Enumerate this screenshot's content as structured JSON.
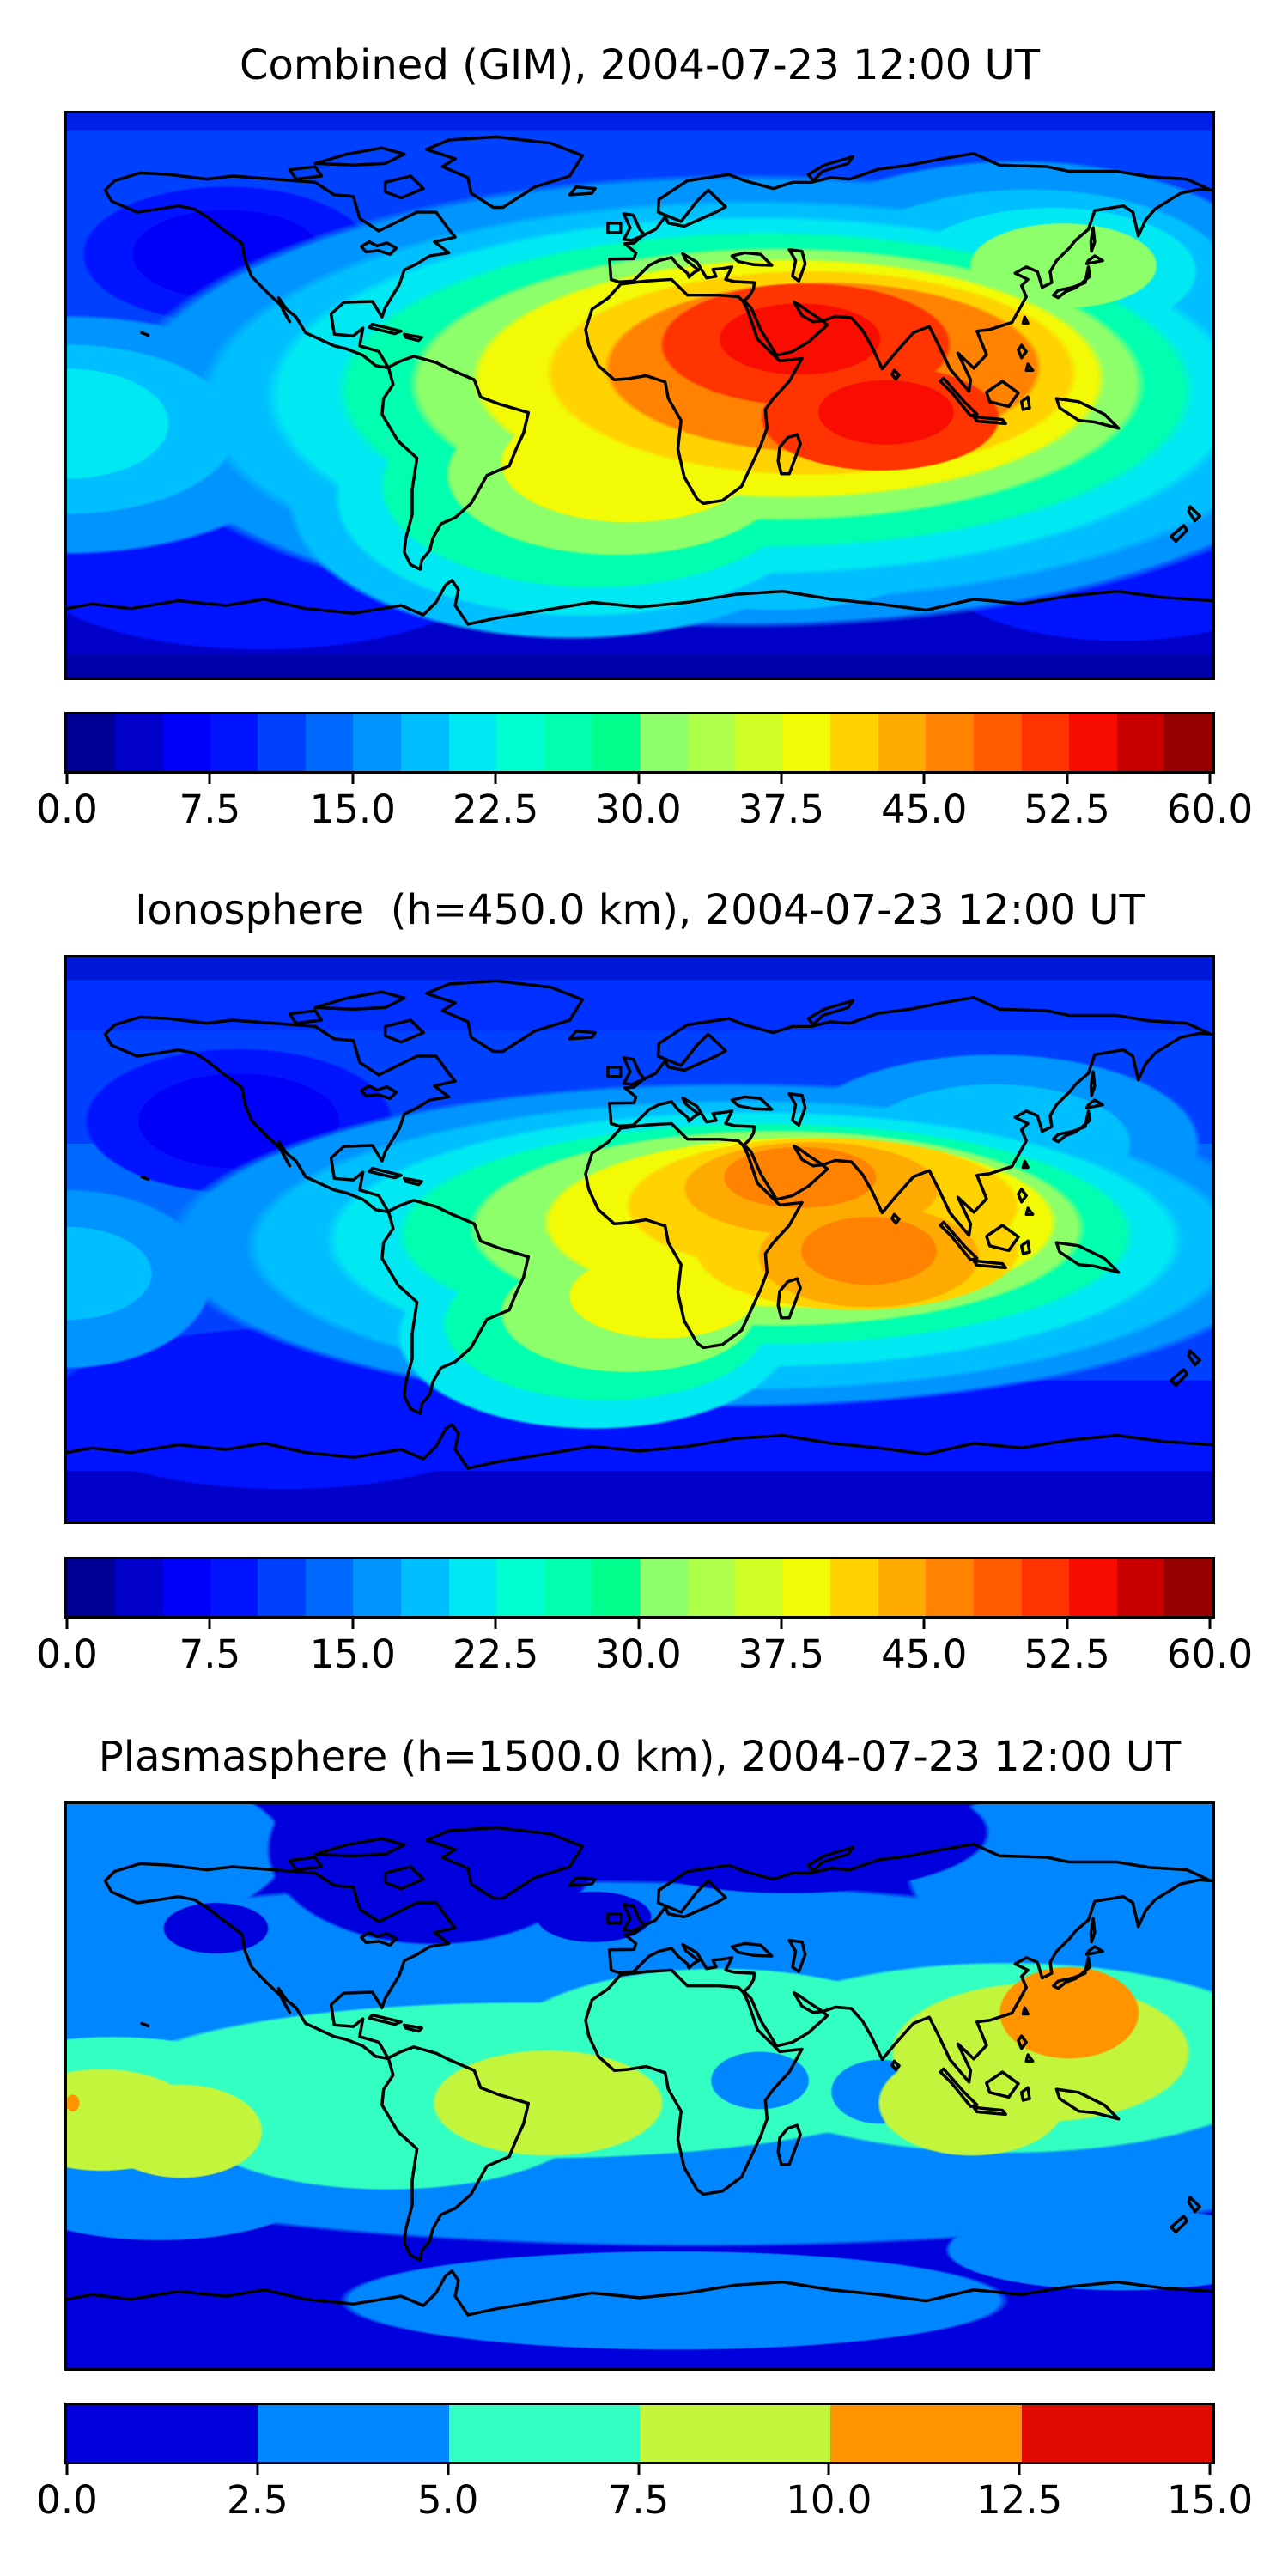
{
  "figure": {
    "kind": "stacked filled-contour world maps with horizontal colorbars",
    "background_color": "#ffffff",
    "text_color": "#000000",
    "colormap_name": "jet"
  },
  "panels": [
    {
      "id": "combined",
      "title": "Combined (GIM), 2004-07-23 12:00 UT",
      "colorbar": {
        "min": 0.0,
        "max": 60.0,
        "step": 2.5,
        "n_segments": 24,
        "tick_labels": [
          "0.0",
          "7.5",
          "15.0",
          "22.5",
          "30.0",
          "37.5",
          "45.0",
          "52.5",
          "60.0"
        ],
        "segment_colors": [
          "#000096",
          "#0000c8",
          "#0000f8",
          "#0014ff",
          "#0040ff",
          "#006aff",
          "#0094ff",
          "#00bfff",
          "#00e9f2",
          "#00ffd0",
          "#00ffae",
          "#00ff8c",
          "#8cff6a",
          "#aeff48",
          "#d0ff26",
          "#f2fa05",
          "#ffd200",
          "#ffaa00",
          "#ff8200",
          "#ff5c00",
          "#ff3400",
          "#f70d00",
          "#c80000",
          "#960000"
        ]
      }
    },
    {
      "id": "ionosphere",
      "title": "Ionosphere  (h=450.0 km), 2004-07-23 12:00 UT",
      "colorbar": {
        "min": 0.0,
        "max": 60.0,
        "step": 2.5,
        "n_segments": 24,
        "tick_labels": [
          "0.0",
          "7.5",
          "15.0",
          "22.5",
          "30.0",
          "37.5",
          "45.0",
          "52.5",
          "60.0"
        ],
        "segment_colors": [
          "#000096",
          "#0000c8",
          "#0000f8",
          "#0014ff",
          "#0040ff",
          "#006aff",
          "#0094ff",
          "#00bfff",
          "#00e9f2",
          "#00ffd0",
          "#00ffae",
          "#00ff8c",
          "#8cff6a",
          "#aeff48",
          "#d0ff26",
          "#f2fa05",
          "#ffd200",
          "#ffaa00",
          "#ff8200",
          "#ff5c00",
          "#ff3400",
          "#f70d00",
          "#c80000",
          "#960000"
        ]
      }
    },
    {
      "id": "plasmasphere",
      "title": "Plasmasphere (h=1500.0 km), 2004-07-23 12:00 UT",
      "colorbar": {
        "min": 0.0,
        "max": 15.0,
        "step": 2.5,
        "n_segments": 6,
        "tick_labels": [
          "0.0",
          "2.5",
          "5.0",
          "7.5",
          "10.0",
          "12.5",
          "15.0"
        ],
        "segment_colors": [
          "#0000dc",
          "#0086ff",
          "#33ffc2",
          "#c3f53c",
          "#ff9400",
          "#df0a00"
        ]
      }
    }
  ],
  "chart_data": [
    {
      "type": "heatmap",
      "subtype": "filled_contour_world_map",
      "title": "Combined (GIM), 2004-07-23 12:00 UT",
      "projection": "equirectangular",
      "x_range_lon": [
        -180,
        180
      ],
      "y_range_lat": [
        -90,
        90
      ],
      "colormap": "jet",
      "levels": {
        "min": 0.0,
        "max": 60.0,
        "step": 2.5
      },
      "colorbar_ticks": [
        0.0,
        7.5,
        15.0,
        22.5,
        30.0,
        37.5,
        45.0,
        52.5,
        60.0
      ],
      "features": [
        {
          "label": "primary maximum",
          "lon_approx": 45,
          "lat_approx": 18,
          "value_approx": 55
        },
        {
          "label": "secondary maximum",
          "lon_approx": 72,
          "lat_approx": -12,
          "value_approx": 52.5
        },
        {
          "label": "daytime enhancement",
          "description": "broad orange-yellow region over North Africa, Arabia, Indian subcontinent and Indian Ocean, extending southwest over the South Atlantic",
          "value_range": [
            25,
            50
          ]
        },
        {
          "label": "mid-level patch",
          "description": "green-cyan patch over northeast Asia near Japan",
          "value_range": [
            17.5,
            32.5
          ]
        },
        {
          "label": "nightside background",
          "description": "dark blue over the Pacific and at high latitudes",
          "value_range": [
            2.5,
            12.5
          ]
        }
      ]
    },
    {
      "type": "heatmap",
      "subtype": "filled_contour_world_map",
      "title": "Ionosphere  (h=450.0 km), 2004-07-23 12:00 UT",
      "projection": "equirectangular",
      "x_range_lon": [
        -180,
        180
      ],
      "y_range_lat": [
        -90,
        90
      ],
      "colormap": "jet",
      "levels": {
        "min": 0.0,
        "max": 60.0,
        "step": 2.5
      },
      "colorbar_ticks": [
        0.0,
        7.5,
        15.0,
        22.5,
        30.0,
        37.5,
        45.0,
        52.5,
        60.0
      ],
      "features": [
        {
          "label": "primary maximum",
          "lon_approx": 50,
          "lat_approx": 18,
          "value_approx": 45
        },
        {
          "label": "secondary maximum",
          "lon_approx": 70,
          "lat_approx": -10,
          "value_approx": 42.5
        },
        {
          "label": "daytime enhancement",
          "description": "yellow region over central Africa, Arabia and the western Indian Ocean with green-cyan halo trailing southwest over the South Atlantic",
          "value_range": [
            22.5,
            40
          ]
        },
        {
          "label": "nightside background",
          "description": "dark blue over the Pacific, Americas at night and high latitudes",
          "value_range": [
            2.5,
            10
          ]
        }
      ]
    },
    {
      "type": "heatmap",
      "subtype": "filled_contour_world_map",
      "title": "Plasmasphere (h=1500.0 km), 2004-07-23 12:00 UT",
      "projection": "equirectangular",
      "x_range_lon": [
        -180,
        180
      ],
      "y_range_lat": [
        -90,
        90
      ],
      "colormap": "jet",
      "levels": {
        "min": 0.0,
        "max": 15.0,
        "step": 2.5
      },
      "colorbar_ticks": [
        0.0,
        2.5,
        5.0,
        7.5,
        10.0,
        12.5,
        15.0
      ],
      "features": [
        {
          "label": "maximum",
          "lon_approx": 140,
          "lat_approx": 22,
          "value_approx": 12,
          "description": "orange blob over Japan / northwest Pacific"
        },
        {
          "label": "small maximum",
          "lon_approx": -178,
          "lat_approx": -5,
          "value_approx": 11,
          "description": "tiny orange spot at far-left map edge"
        },
        {
          "label": "equatorial band",
          "description": "turquoise band (5.0-7.5) following the geomagnetic equator across all longitudes",
          "value_range": [
            5,
            7.5
          ]
        },
        {
          "label": "enhanced patches",
          "description": "yellow-green patches (7.5-10) over the central Pacific (left edge), west Africa / tropical Atlantic and the west Pacific",
          "value_range": [
            7.5,
            10
          ]
        },
        {
          "label": "mid-latitude band",
          "description": "light blue (2.5-5.0) flanking the equatorial band on both sides",
          "value_range": [
            2.5,
            5
          ]
        },
        {
          "label": "polar background",
          "description": "dark blue (0-2.5) at high northern and southern latitudes",
          "value_range": [
            0,
            2.5
          ]
        }
      ]
    }
  ]
}
